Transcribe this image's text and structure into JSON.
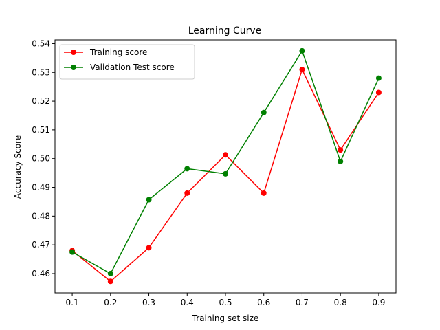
{
  "chart_data": {
    "type": "line",
    "title": "Learning Curve",
    "xlabel": "Training set size",
    "ylabel": "Accuracy Score",
    "x": [
      0.1,
      0.2,
      0.3,
      0.4,
      0.5,
      0.6,
      0.7,
      0.8,
      0.9
    ],
    "x_tick_labels": [
      "0.1",
      "0.2",
      "0.3",
      "0.4",
      "0.5",
      "0.6",
      "0.7",
      "0.8",
      "0.9"
    ],
    "y_ticks": [
      0.46,
      0.47,
      0.48,
      0.49,
      0.5,
      0.51,
      0.52,
      0.53,
      0.54
    ],
    "y_tick_labels": [
      "0.46",
      "0.47",
      "0.48",
      "0.49",
      "0.50",
      "0.51",
      "0.52",
      "0.53",
      "0.54"
    ],
    "xlim": [
      0.055,
      0.945
    ],
    "ylim": [
      0.4533,
      0.5413
    ],
    "grid": false,
    "legend_position": "upper-left",
    "series": [
      {
        "name": "Training score",
        "color": "#ff0000",
        "marker": "circle",
        "values": [
          0.468,
          0.4573,
          0.469,
          0.488,
          0.5013,
          0.488,
          0.531,
          0.503,
          0.523
        ]
      },
      {
        "name": "Validation Test score",
        "color": "#008000",
        "marker": "circle",
        "values": [
          0.4675,
          0.46,
          0.4857,
          0.4965,
          0.4947,
          0.516,
          0.5375,
          0.499,
          0.528
        ]
      }
    ]
  }
}
